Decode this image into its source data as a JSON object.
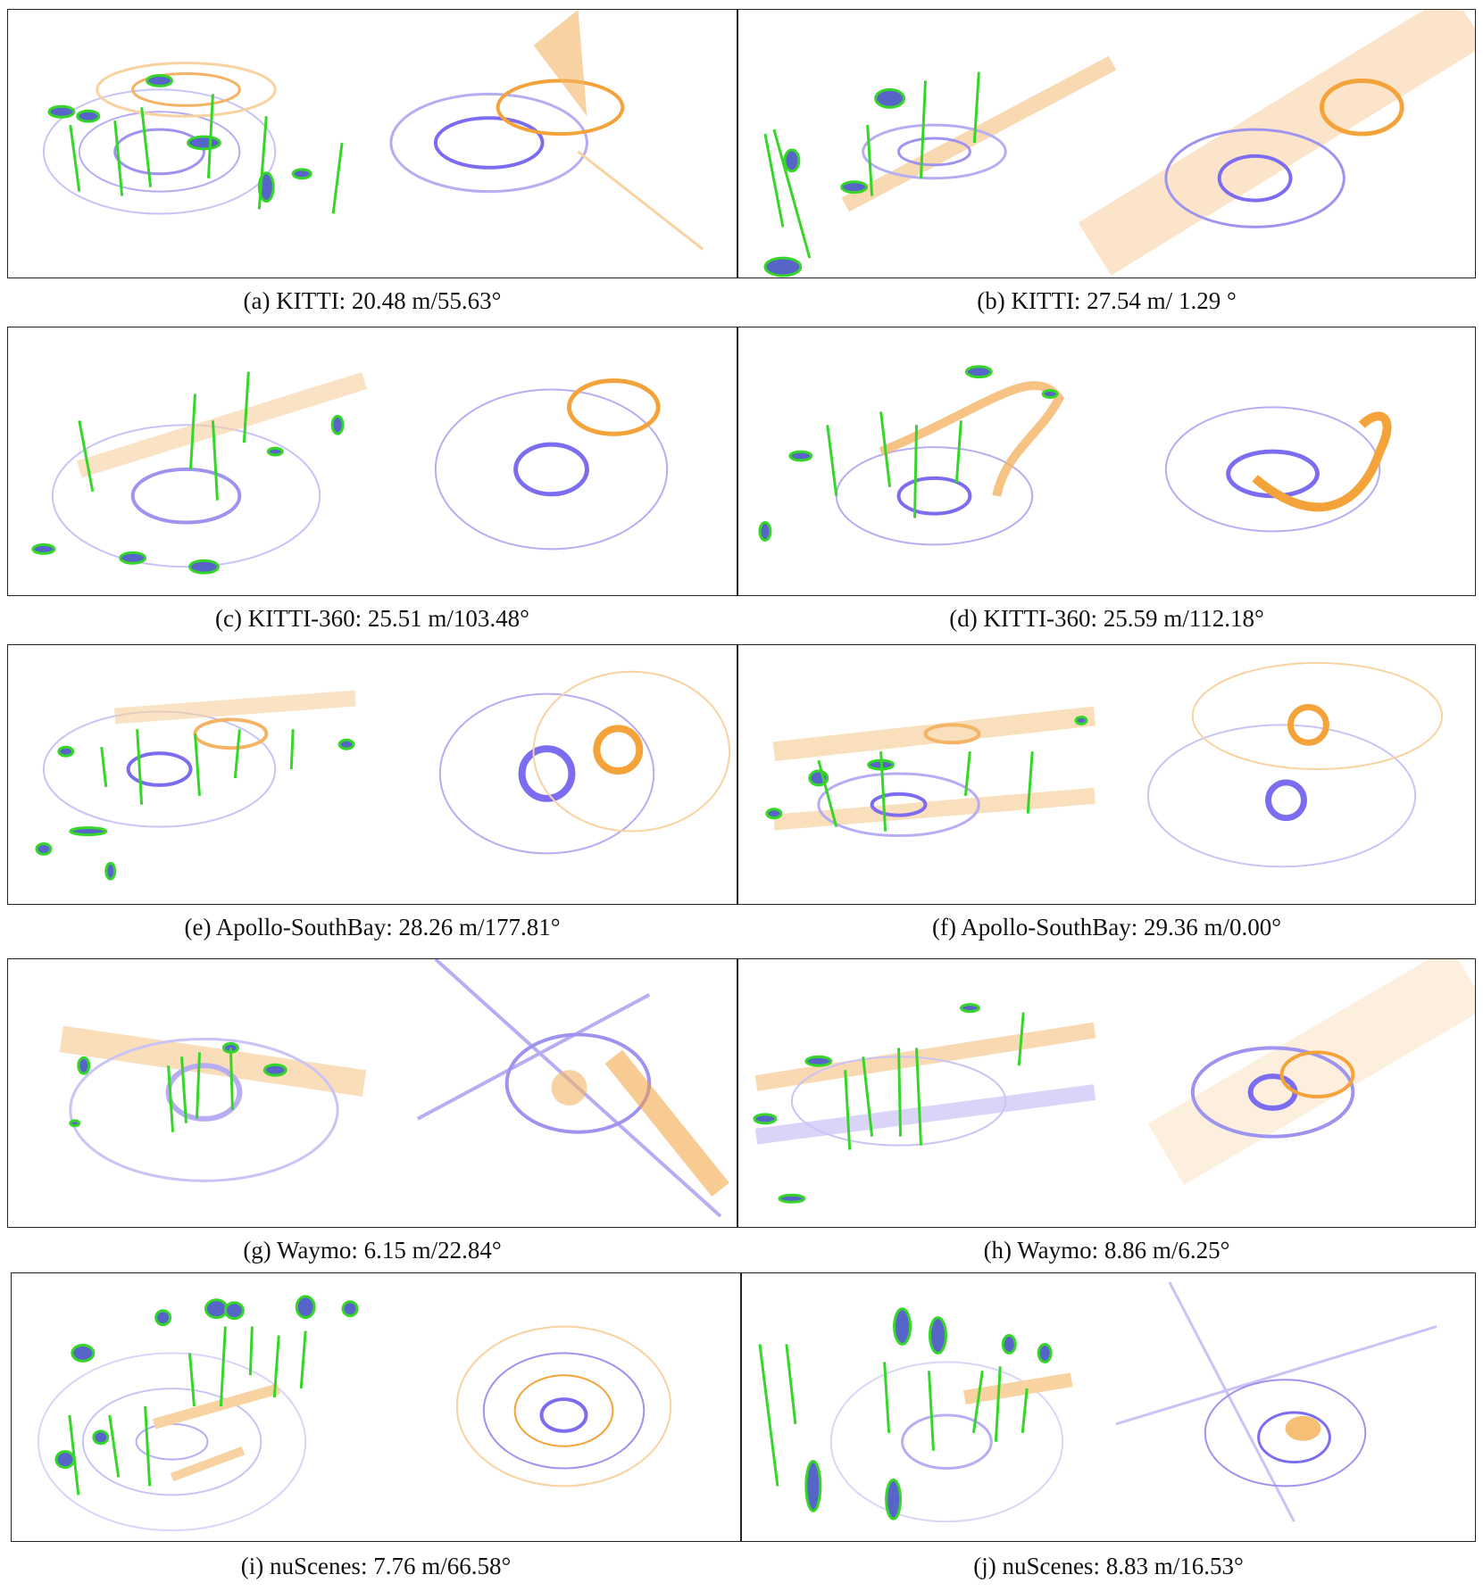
{
  "figure": {
    "panels": [
      {
        "caption": "(a) KITTI: 20.48 m/55.63°"
      },
      {
        "caption": "(b) KITTI: 27.54 m/ 1.29 °"
      },
      {
        "caption": "(c) KITTI-360: 25.51 m/103.48°"
      },
      {
        "caption": "(d) KITTI-360: 25.59 m/112.18°"
      },
      {
        "caption": "(e) Apollo-SouthBay: 28.26 m/177.81°"
      },
      {
        "caption": "(f) Apollo-SouthBay: 29.36 m/0.00°"
      },
      {
        "caption": "(g) Waymo: 6.15 m/22.84°"
      },
      {
        "caption": "(h) Waymo: 8.86 m/6.25°"
      },
      {
        "caption": "(i) nuScenes: 7.76 m/66.58°"
      },
      {
        "caption": "(j) nuScenes: 8.83 m/16.53°"
      }
    ],
    "colors": {
      "query_scan": "#7b6cf0",
      "map_scan": "#f4a23a",
      "ellipse": "#5865c8",
      "match_line": "#36d629",
      "frame": "#222222"
    }
  }
}
